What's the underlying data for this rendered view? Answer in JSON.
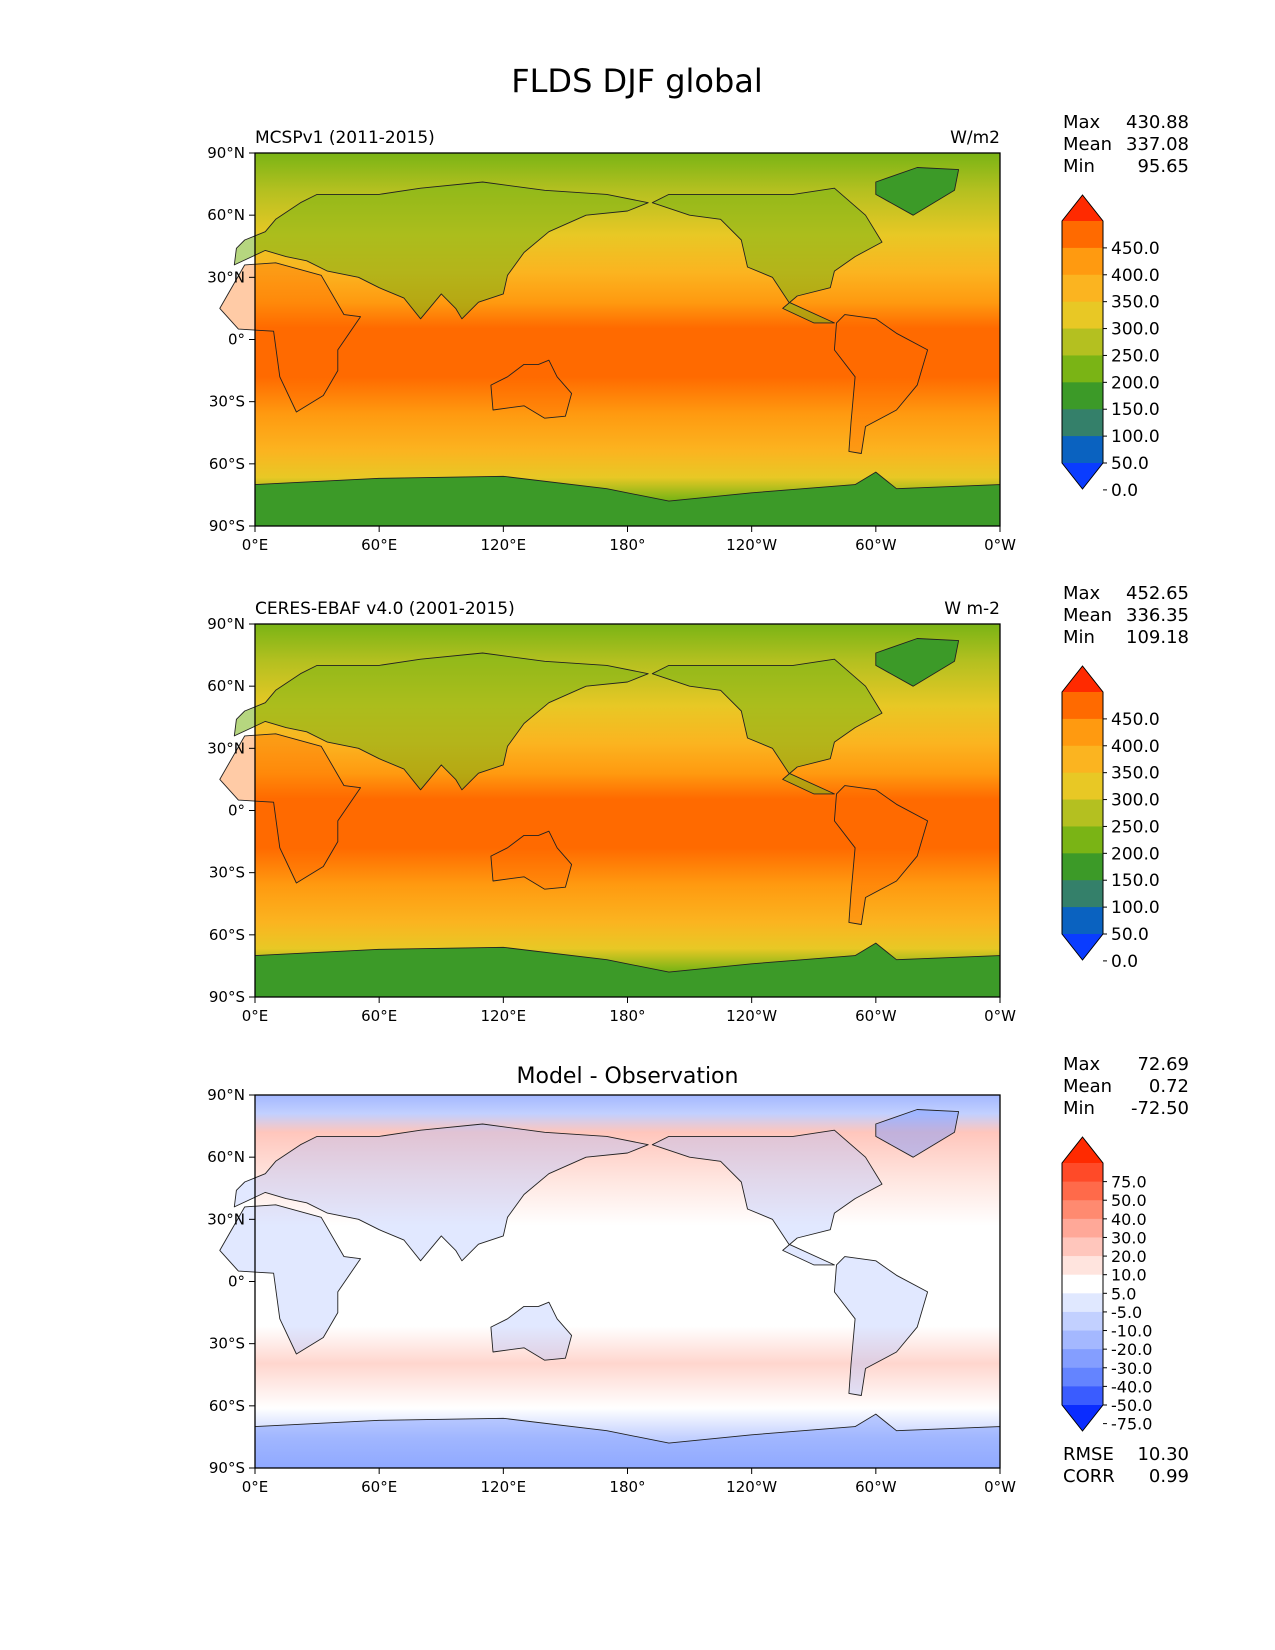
{
  "figure": {
    "title": "FLDS DJF global"
  },
  "axes": {
    "lat_ticks": [
      "90°N",
      "60°N",
      "30°N",
      "0°",
      "30°S",
      "60°S",
      "90°S"
    ],
    "lon_ticks": [
      "0°E",
      "60°E",
      "120°E",
      "180°",
      "120°W",
      "60°W",
      "0°W"
    ]
  },
  "panels": [
    {
      "id": "model",
      "title_left": "MCSPv1 (2011-2015)",
      "title_center": "",
      "title_right": "W/m2",
      "stats": [
        {
          "label": "Max",
          "value": "430.88"
        },
        {
          "label": "Mean",
          "value": "337.08"
        },
        {
          "label": "Min",
          "value": "95.65"
        }
      ],
      "colorbar": {
        "labels": [
          "450.0",
          "400.0",
          "350.0",
          "300.0",
          "250.0",
          "200.0",
          "150.0",
          "100.0",
          "50.0",
          "0.0"
        ],
        "colors": [
          "#ff2a00",
          "#ff6a00",
          "#ff9a10",
          "#fbb420",
          "#e8c825",
          "#b4c020",
          "#7ab415",
          "#3c9a28",
          "#34806a",
          "#0a62c0",
          "#0a3cff"
        ]
      }
    },
    {
      "id": "obs",
      "title_left": "CERES-EBAF v4.0 (2001-2015)",
      "title_center": "",
      "title_right": "W m-2",
      "stats": [
        {
          "label": "Max",
          "value": "452.65"
        },
        {
          "label": "Mean",
          "value": "336.35"
        },
        {
          "label": "Min",
          "value": "109.18"
        }
      ],
      "colorbar": {
        "labels": [
          "450.0",
          "400.0",
          "350.0",
          "300.0",
          "250.0",
          "200.0",
          "150.0",
          "100.0",
          "50.0",
          "0.0"
        ],
        "colors": [
          "#ff2a00",
          "#ff6a00",
          "#ff9a10",
          "#fbb420",
          "#e8c825",
          "#b4c020",
          "#7ab415",
          "#3c9a28",
          "#34806a",
          "#0a62c0",
          "#0a3cff"
        ]
      }
    },
    {
      "id": "diff",
      "title_left": "",
      "title_center": "Model - Observation",
      "title_right": "",
      "stats": [
        {
          "label": "Max",
          "value": "72.69"
        },
        {
          "label": "Mean",
          "value": "0.72"
        },
        {
          "label": "Min",
          "value": "-72.50"
        }
      ],
      "extra_stats": [
        {
          "label": "RMSE",
          "value": "10.30"
        },
        {
          "label": "CORR",
          "value": "0.99"
        }
      ],
      "colorbar": {
        "labels": [
          "75.0",
          "50.0",
          "40.0",
          "30.0",
          "20.0",
          "10.0",
          "5.0",
          "-5.0",
          "-10.0",
          "-20.0",
          "-30.0",
          "-40.0",
          "-50.0",
          "-75.0"
        ],
        "colors": [
          "#ff2a00",
          "#ff4a28",
          "#ff6a4a",
          "#ff8a70",
          "#ffa898",
          "#ffc6bc",
          "#ffe4de",
          "#ffffff",
          "#e0e8ff",
          "#c2d0ff",
          "#a4b8ff",
          "#849eff",
          "#6484ff",
          "#3a5cff",
          "#0a2cff"
        ]
      }
    }
  ]
}
